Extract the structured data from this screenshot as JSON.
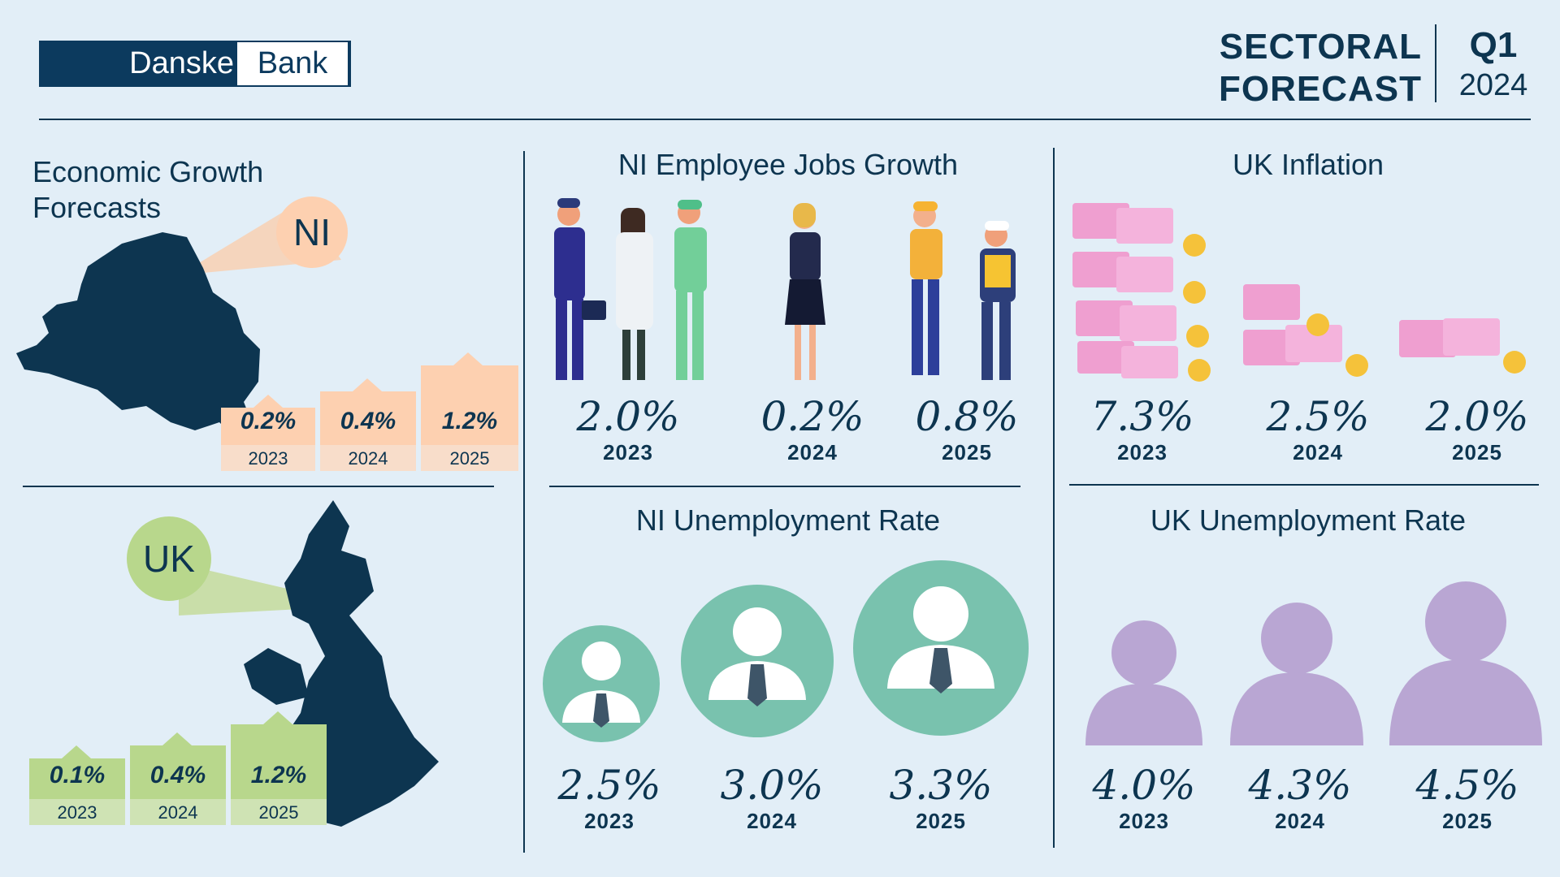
{
  "logo": {
    "part1": "Danske",
    "part2": "Bank"
  },
  "header": {
    "title_line1": "SECTORAL",
    "title_line2": "FORECAST",
    "quarter": "Q1",
    "year": "2024"
  },
  "growth": {
    "title_line1": "Economic Growth",
    "title_line2": "Forecasts",
    "ni": {
      "label": "NI",
      "items": [
        {
          "value": "0.2%",
          "year": "2023"
        },
        {
          "value": "0.4%",
          "year": "2024"
        },
        {
          "value": "1.2%",
          "year": "2025"
        }
      ]
    },
    "uk": {
      "label": "UK",
      "items": [
        {
          "value": "0.1%",
          "year": "2023"
        },
        {
          "value": "0.4%",
          "year": "2024"
        },
        {
          "value": "1.2%",
          "year": "2025"
        }
      ]
    }
  },
  "ni_jobs": {
    "title": "NI Employee Jobs Growth",
    "items": [
      {
        "value": "2.0%",
        "year": "2023"
      },
      {
        "value": "0.2%",
        "year": "2024"
      },
      {
        "value": "0.8%",
        "year": "2025"
      }
    ]
  },
  "uk_inflation": {
    "title": "UK Inflation",
    "items": [
      {
        "value": "7.3%",
        "year": "2023"
      },
      {
        "value": "2.5%",
        "year": "2024"
      },
      {
        "value": "2.0%",
        "year": "2025"
      }
    ]
  },
  "ni_unemployment": {
    "title": "NI Unemployment Rate",
    "items": [
      {
        "value": "2.5%",
        "year": "2023"
      },
      {
        "value": "3.0%",
        "year": "2024"
      },
      {
        "value": "3.3%",
        "year": "2025"
      }
    ]
  },
  "uk_unemployment": {
    "title": "UK Unemployment Rate",
    "items": [
      {
        "value": "4.0%",
        "year": "2023"
      },
      {
        "value": "4.3%",
        "year": "2024"
      },
      {
        "value": "4.5%",
        "year": "2025"
      }
    ]
  },
  "colors": {
    "navy": "#0d3550",
    "peach": "#fdd0b0",
    "green": "#b8d78c",
    "teal": "#79c2ae",
    "purple": "#b9a6d3",
    "pink": "#eea6d2"
  }
}
